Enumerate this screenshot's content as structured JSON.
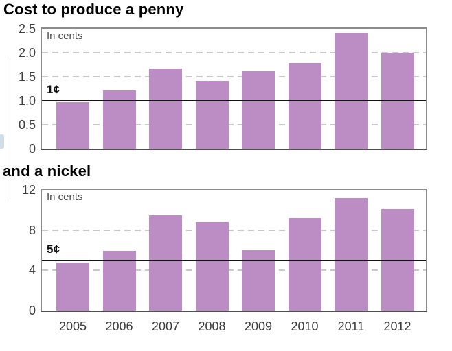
{
  "page": {
    "background": "#ffffff"
  },
  "colors": {
    "bar": "#bb8dc4",
    "plot_border": "#8b8b8b",
    "axis_bottom": "#4f4f4f",
    "gridline": "#c8c8c8",
    "reference_line": "#141414",
    "tick_text": "#3d3d3d",
    "note_text": "#4a4a4a",
    "title_text": "#000000"
  },
  "chart_data": [
    {
      "type": "bar",
      "title": "Cost to produce a penny",
      "note": "In cents",
      "categories": [
        "2005",
        "2006",
        "2007",
        "2008",
        "2009",
        "2010",
        "2011",
        "2012"
      ],
      "values": [
        0.97,
        1.21,
        1.67,
        1.42,
        1.62,
        1.79,
        2.41,
        2.0
      ],
      "ylim": [
        0,
        2.5
      ],
      "yticks": [
        {
          "value": 0,
          "label": "0"
        },
        {
          "value": 0.5,
          "label": "0.5"
        },
        {
          "value": 1.0,
          "label": "1.0"
        },
        {
          "value": 1.5,
          "label": "1.5"
        },
        {
          "value": 2.0,
          "label": "2.0"
        },
        {
          "value": 2.5,
          "label": "2.5"
        }
      ],
      "gridlines": [
        0.5,
        1.5,
        2.0
      ],
      "reference_line": {
        "value": 1.0,
        "label": "1¢"
      },
      "grid": "dashed",
      "legend": "none"
    },
    {
      "type": "bar",
      "title": "and a nickel",
      "note": "In cents",
      "categories": [
        "2005",
        "2006",
        "2007",
        "2008",
        "2009",
        "2010",
        "2011",
        "2012"
      ],
      "values": [
        4.8,
        5.9,
        9.5,
        8.8,
        6.0,
        9.2,
        11.2,
        10.1
      ],
      "ylim": [
        0,
        12
      ],
      "yticks": [
        {
          "value": 0,
          "label": "0"
        },
        {
          "value": 4,
          "label": "4"
        },
        {
          "value": 8,
          "label": "8"
        },
        {
          "value": 12,
          "label": "12"
        }
      ],
      "gridlines": [
        4,
        8
      ],
      "reference_line": {
        "value": 5,
        "label": "5¢"
      },
      "grid": "dashed",
      "legend": "none"
    }
  ]
}
